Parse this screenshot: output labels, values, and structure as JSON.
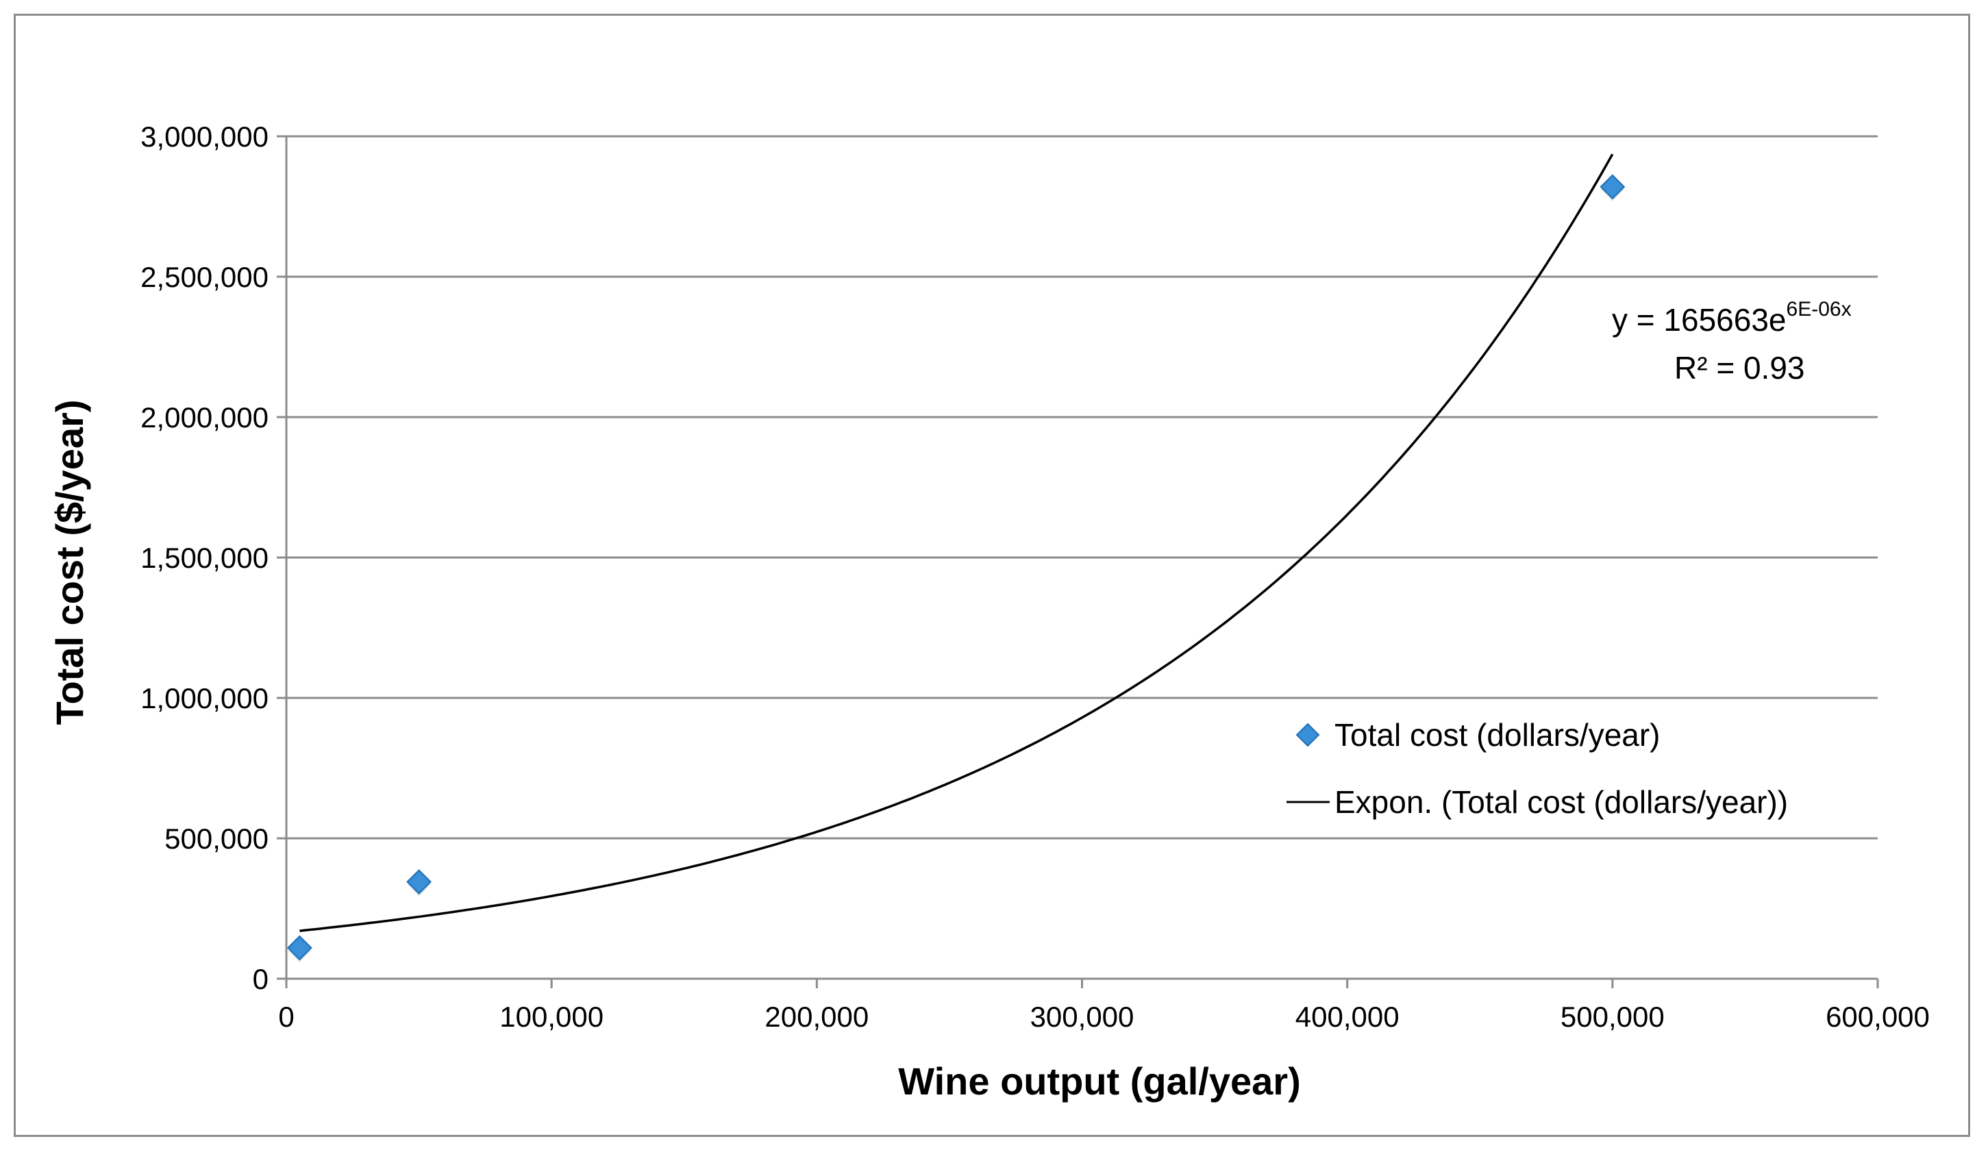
{
  "chart_data": {
    "type": "scatter",
    "title": "",
    "xlabel": "Wine output (gal/year)",
    "ylabel": "Total cost ($/year)",
    "xlim": [
      0,
      600000
    ],
    "ylim": [
      0,
      3000000
    ],
    "x_ticks": [
      0,
      100000,
      200000,
      300000,
      400000,
      500000,
      600000
    ],
    "x_tick_labels": [
      "0",
      "100,000",
      "200,000",
      "300,000",
      "400,000",
      "500,000",
      "600,000"
    ],
    "y_ticks": [
      0,
      500000,
      1000000,
      1500000,
      2000000,
      2500000,
      3000000
    ],
    "y_tick_labels": [
      "0",
      "500,000",
      "1,000,000",
      "1,500,000",
      "2,000,000",
      "2,500,000",
      "3,000,000"
    ],
    "grid": "horizontal",
    "series": [
      {
        "name": "Total cost (dollars/year)",
        "kind": "scatter",
        "marker": "diamond",
        "color": "#3a8fd9",
        "points": [
          {
            "x": 5000,
            "y": 110000
          },
          {
            "x": 50000,
            "y": 345000
          },
          {
            "x": 500000,
            "y": 2820000
          }
        ]
      },
      {
        "name": "Expon. (Total cost (dollars/year))",
        "kind": "trendline",
        "model": "exponential",
        "a": 165663,
        "b": 5.75e-06,
        "x_range": [
          5000,
          500000
        ],
        "color": "#000000"
      }
    ],
    "legend": {
      "placement": "right-middle",
      "items": [
        "Total cost (dollars/year)",
        "Expon. (Total cost (dollars/year))"
      ]
    },
    "annotations": {
      "equation_base": "y = 165663e",
      "equation_exponent": "6E-06x",
      "r_squared": "R² = 0.93"
    }
  }
}
